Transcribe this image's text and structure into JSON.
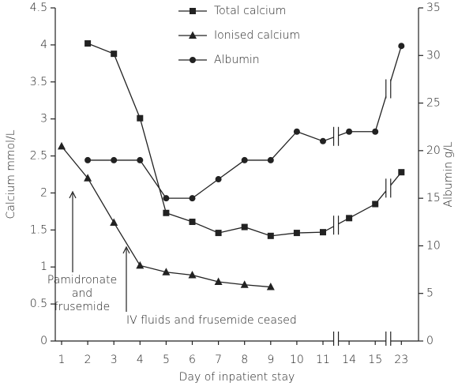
{
  "chart_data": {
    "type": "line",
    "categories": [
      "1",
      "2",
      "3",
      "4",
      "5",
      "6",
      "7",
      "8",
      "9",
      "10",
      "11",
      "14",
      "15",
      "23"
    ],
    "x_label": "Day of inpatient stay",
    "y_label": "Calcium mmol/L",
    "y2_label": "Albumin g/L",
    "ylim": [
      0,
      4.5
    ],
    "yticks": [
      0,
      0.5,
      1,
      1.5,
      2,
      2.5,
      3,
      3.5,
      4,
      4.5
    ],
    "y2lim": [
      0,
      35
    ],
    "y2ticks": [
      0,
      5,
      10,
      15,
      20,
      25,
      30,
      35
    ],
    "series": [
      {
        "name": "Total calcium",
        "color": "#222222",
        "marker": "square",
        "values": [
          null,
          4.02,
          3.88,
          3.01,
          1.73,
          1.61,
          1.46,
          1.54,
          1.42,
          1.46,
          1.47,
          1.66,
          1.85,
          2.28
        ]
      },
      {
        "name": "Ionised calcium",
        "color": "#222222",
        "marker": "triangle",
        "values": [
          2.63,
          2.2,
          1.6,
          1.02,
          0.93,
          0.89,
          0.8,
          0.76,
          0.73,
          null,
          null,
          null,
          null,
          null
        ]
      },
      {
        "name": "Albumin",
        "color": "#222222",
        "marker": "circle",
        "axis": "y2",
        "values": [
          null,
          19,
          19,
          19,
          15,
          15,
          17,
          19,
          19,
          22,
          21,
          22,
          22,
          31
        ]
      }
    ],
    "annotations": [
      [
        "Pamidronate",
        "and",
        "frusemide"
      ],
      [
        "IV fluids and frusemide ceased"
      ]
    ]
  }
}
